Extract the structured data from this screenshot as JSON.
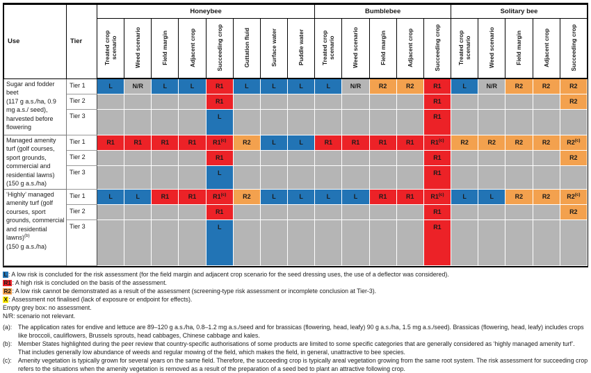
{
  "colors": {
    "low": "#2274B5",
    "r1": "#EC2227",
    "r2": "#F3A14E",
    "none": "#B5B5B5",
    "x": "#FFEC00"
  },
  "table": {
    "use_header": "Use",
    "tier_header": "Tier",
    "groups": [
      {
        "label": "Honeybee",
        "columns": [
          "Treated crop scenario",
          "Weed scenario",
          "Field margin",
          "Adjacent crop",
          "Succeeding crop",
          "Guttation fluid",
          "Surface water",
          "Puddle water"
        ]
      },
      {
        "label": "Bumblebee",
        "columns": [
          "Treated crop scenario",
          "Weed scenario",
          "Field margin",
          "Adjacent crop",
          "Succeeding crop"
        ]
      },
      {
        "label": "Solitary bee",
        "columns": [
          "Treated crop scenario",
          "Weed scenario",
          "Field margin",
          "Adjacent crop",
          "Succeeding crop"
        ]
      }
    ],
    "rows": [
      {
        "use": "Sugar and fodder beet\n(117 g a.s./ha, 0.9 mg a.s./ seed), harvested before flowering",
        "tiers": [
          {
            "label": "Tier 1",
            "cells": [
              "L",
              "N/R",
              "L",
              "L",
              "R1",
              "L",
              "L",
              "L",
              "L",
              "N/R",
              "R2",
              "R2",
              "R1",
              "L",
              "N/R",
              "R2",
              "R2",
              "R2"
            ]
          },
          {
            "label": "Tier 2",
            "cells": [
              "",
              "",
              "",
              "",
              "R1",
              "",
              "",
              "",
              "",
              "",
              "",
              "",
              "R1",
              "",
              "",
              "",
              "",
              "R2"
            ]
          },
          {
            "label": "Tier 3",
            "cells": [
              "",
              "",
              "",
              "",
              "L",
              "",
              "",
              "",
              "",
              "",
              "",
              "",
              "R1",
              "",
              "",
              "",
              "",
              ""
            ]
          }
        ]
      },
      {
        "use": "Managed amenity turf (golf courses, sport grounds, commercial and residential lawns)\n(150 g a.s./ha)",
        "tiers": [
          {
            "label": "Tier 1",
            "cells": [
              "R1",
              "R1",
              "R1",
              "R1",
              "R1^(c)^",
              "R2",
              "L",
              "L",
              "R1",
              "R1",
              "R1",
              "R1",
              "R1^(c)^",
              "R2",
              "R2",
              "R2",
              "R2",
              "R2^(c)^"
            ]
          },
          {
            "label": "Tier 2",
            "cells": [
              "",
              "",
              "",
              "",
              "R1",
              "",
              "",
              "",
              "",
              "",
              "",
              "",
              "R1",
              "",
              "",
              "",
              "",
              "R2"
            ]
          },
          {
            "label": "Tier 3",
            "cells": [
              "",
              "",
              "",
              "",
              "L",
              "",
              "",
              "",
              "",
              "",
              "",
              "",
              "R1",
              "",
              "",
              "",
              "",
              ""
            ]
          }
        ]
      },
      {
        "use": "‘Highly’ managed amenity turf (golf courses, sport grounds, commercial and residential lawns)^(b)^\n(150 g a.s./ha)",
        "tiers": [
          {
            "label": "Tier 1",
            "cells": [
              "L",
              "L",
              "R1",
              "R1",
              "R1^(c)^",
              "R2",
              "L",
              "L",
              "L",
              "L",
              "R1",
              "R1",
              "R1^(c)^",
              "L",
              "L",
              "R2",
              "R2",
              "R2^(c)^"
            ]
          },
          {
            "label": "Tier 2",
            "cells": [
              "",
              "",
              "",
              "",
              "R1",
              "",
              "",
              "",
              "",
              "",
              "",
              "",
              "R1",
              "",
              "",
              "",
              "",
              "R2"
            ]
          },
          {
            "label": "Tier 3",
            "cells": [
              "",
              "",
              "",
              "",
              "L",
              "",
              "",
              "",
              "",
              "",
              "",
              "",
              "R1",
              "",
              "",
              "",
              "",
              ""
            ]
          }
        ]
      }
    ]
  },
  "legend": [
    {
      "key": "L",
      "color": "low",
      "text": "A low risk is concluded for the risk assessment (for the field margin and adjacent crop scenario for the seed dressing uses, the use of a deflector was considered)."
    },
    {
      "key": "R1",
      "color": "r1",
      "text": "A high risk is concluded on the basis of the assessment."
    },
    {
      "key": "R2",
      "color": "r2",
      "text": "A low risk cannot be demonstrated as a result of the assessment (screening-type risk assessment or incomplete conclusion at Tier-3)."
    },
    {
      "key": "X",
      "color": "x",
      "text": "Assessment not finalised (lack of exposure or endpoint for effects)."
    },
    {
      "key": null,
      "text": "Empty grey box: no assessment."
    },
    {
      "key": null,
      "text": "N/R: scenario not relevant."
    }
  ],
  "footnotes": [
    {
      "marker": "(a):",
      "text": "The application rates for endive and lettuce are 89–120 g a.s./ha, 0.8–1.2 mg a.s./seed and for brassicas (flowering, head, leafy) 90 g a.s./ha, 1.5 mg a.s./seed). Brassicas (flowering, head, leafy) includes crops like broccoli, cauliflowers, Brussels sprouts, head cabbages, Chinese cabbage and kales."
    },
    {
      "marker": "(b):",
      "text": "Member States highlighted during the peer review that country-specific authorisations of some products are limited to some specific categories that are generally considered as ‘highly managed amenity turf’. That includes generally low abundance of weeds and regular mowing of the field, which makes the field, in general, unattractive to bee species."
    },
    {
      "marker": "(c):",
      "text": "Amenity vegetation is typically grown for several years on the same field. Therefore, the succeeding crop is typically areal vegetation growing from the same root system. The risk assessment for succeeding crop refers to the situations when the amenity vegetation is removed as a result of the preparation of a seed bed to plant an attractive following crop."
    }
  ]
}
